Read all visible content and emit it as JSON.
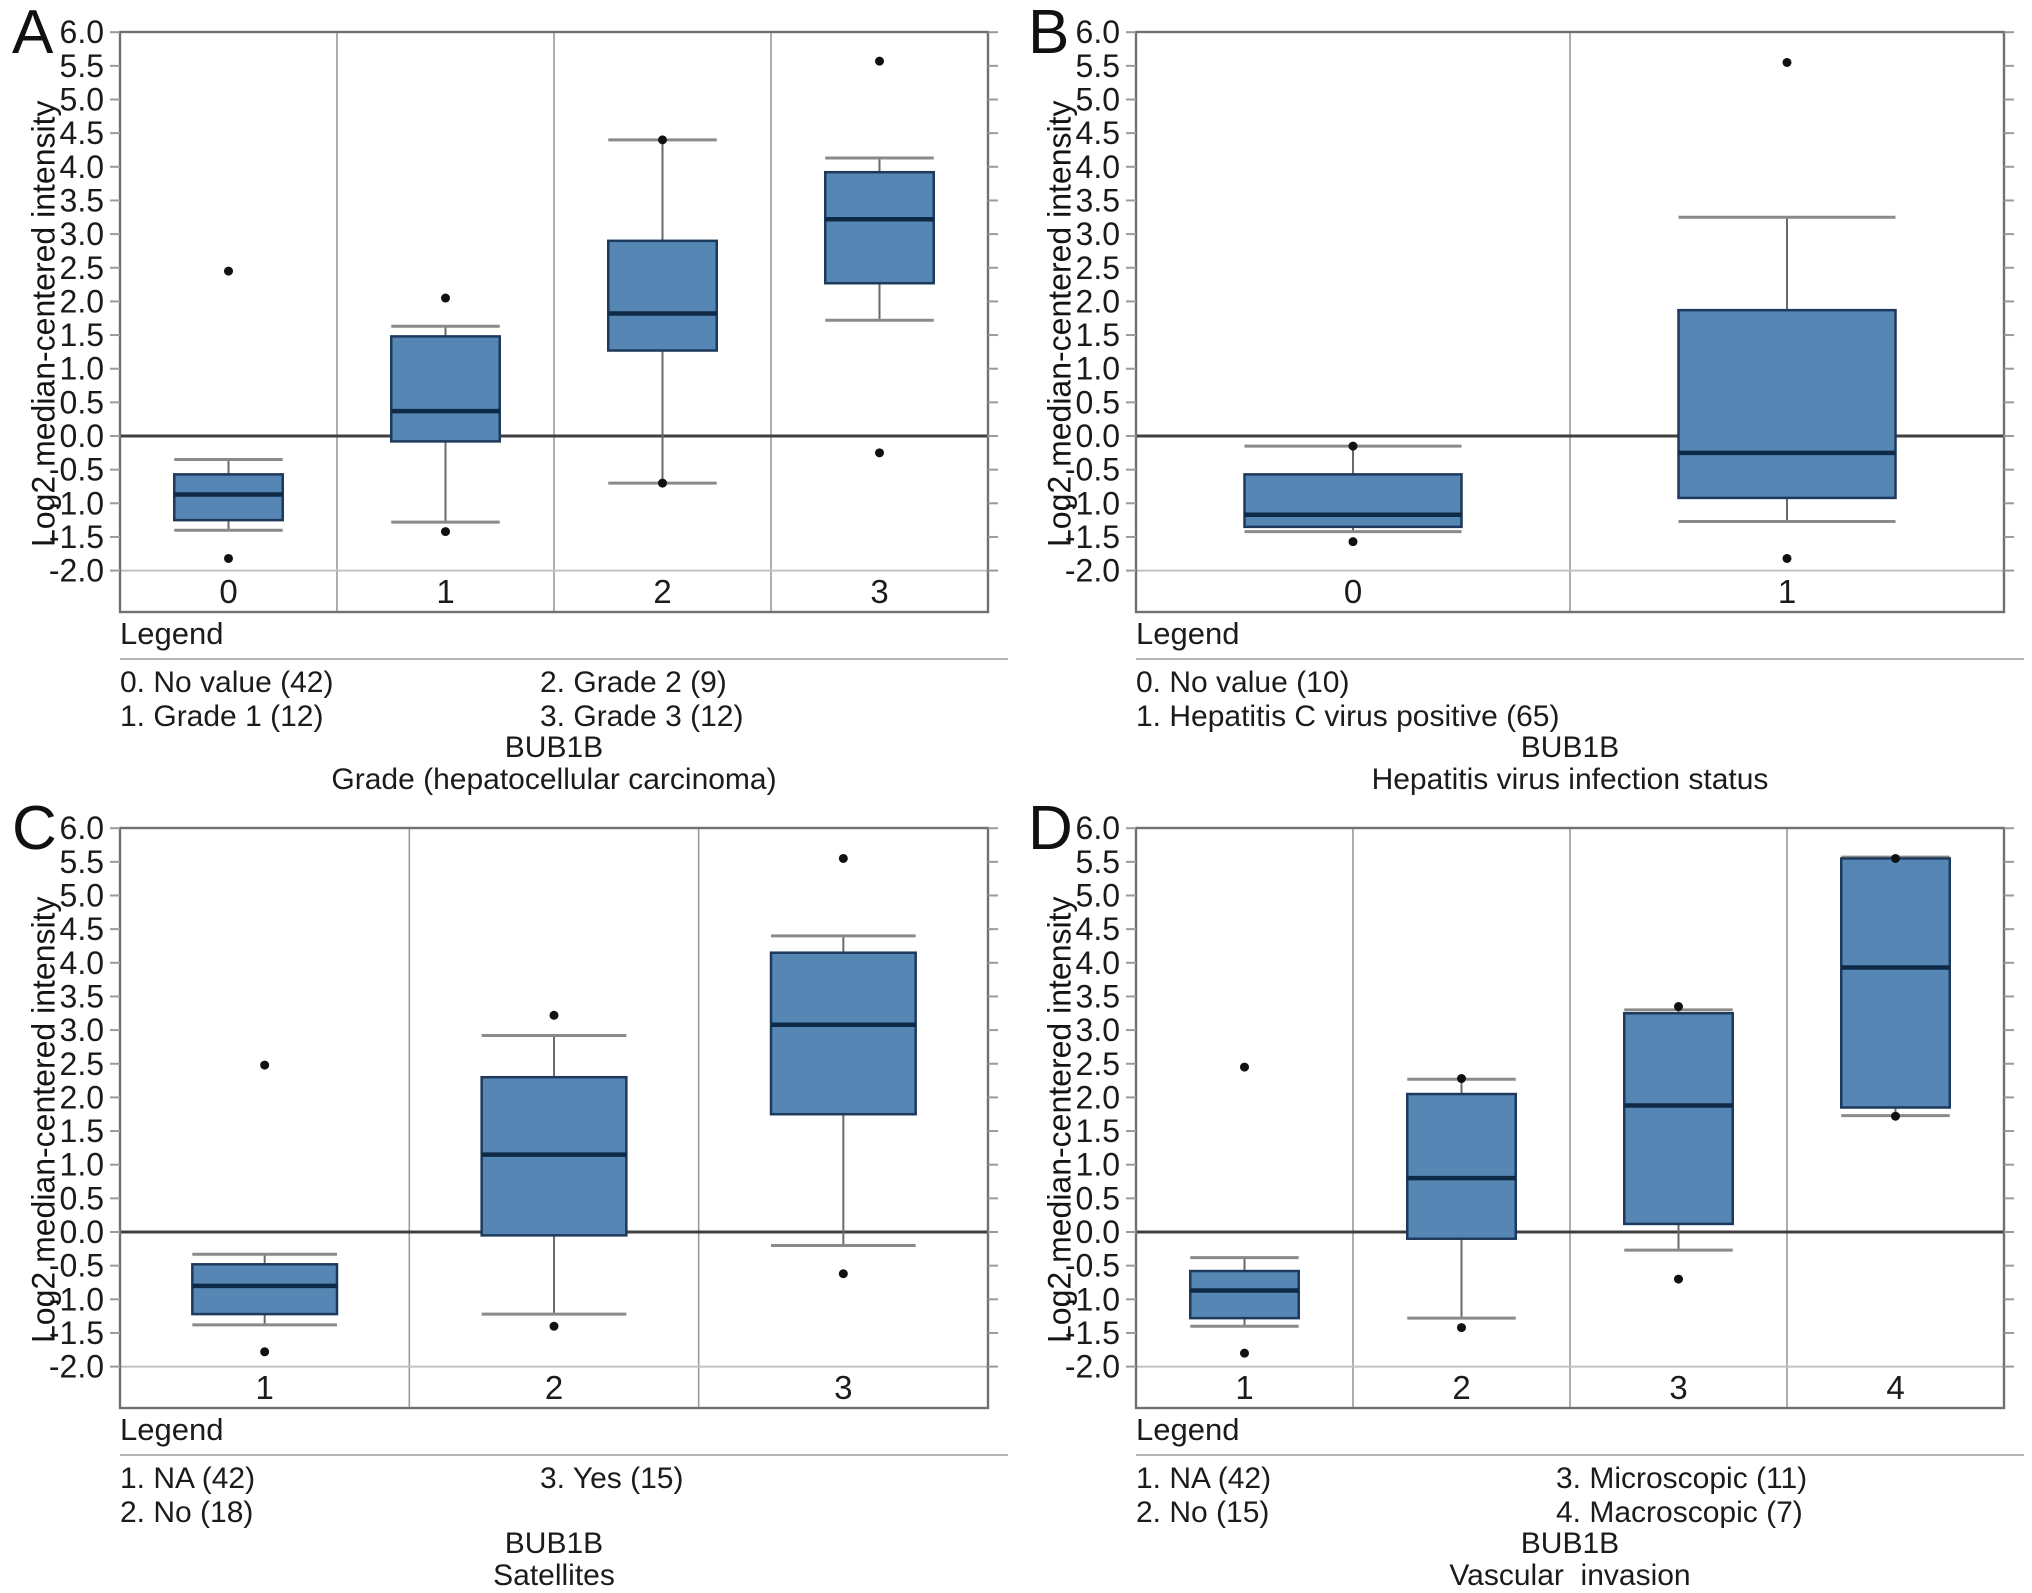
{
  "y_axis": {
    "label": "Log2 median-centered intensity",
    "tick_labels": [
      "6.0",
      "5.5",
      "5.0",
      "4.5",
      "4.0",
      "3.5",
      "3.0",
      "2.5",
      "2.0",
      "1.5",
      "1.0",
      "0.5",
      "0.0",
      "-0.5",
      "-1.0",
      "-1.5",
      "-2.0"
    ]
  },
  "colors": {
    "box_fill": "#5586b4",
    "box_border": "#1d3a5d",
    "median_line": "#0e2a47",
    "whisker_line": "#6a6a6a",
    "cap_line": "#8a8a8a",
    "outlier": "#111111",
    "frame": "#707070",
    "zero_line": "#3f3f3f",
    "baseline_grid": "#c2c2c2",
    "separator": "#9a9a9a",
    "legend_rule": "#b5b5b5",
    "text": "#1b1b1b"
  },
  "chart_data": [
    {
      "type": "box",
      "panel_letter": "A",
      "gene": "BUB1B",
      "title": "Grade (hepatocellular carcinoma)",
      "ylabel": "Log2 median-centered intensity",
      "ylim": [
        -2.6,
        6.0
      ],
      "zero_line": true,
      "legend_title": "Legend",
      "legend_columns": [
        [
          "0. No value (42)",
          "1. Grade 1 (12)"
        ],
        [
          "2. Grade 2 (9)",
          "3. Grade 3 (12)"
        ]
      ],
      "categories": [
        "0",
        "1",
        "2",
        "3"
      ],
      "boxes": [
        {
          "category": "0",
          "whisker_low": -1.4,
          "q1": -1.25,
          "median": -0.87,
          "q3": -0.57,
          "whisker_high": -0.35,
          "outliers": [
            2.45,
            -1.82
          ]
        },
        {
          "category": "1",
          "whisker_low": -1.28,
          "q1": -0.08,
          "median": 0.37,
          "q3": 1.48,
          "whisker_high": 1.63,
          "outliers": [
            2.05,
            -1.42
          ]
        },
        {
          "category": "2",
          "whisker_low": -0.7,
          "q1": 1.27,
          "median": 1.82,
          "q3": 2.9,
          "whisker_high": 4.4,
          "outliers": [
            4.4,
            -0.7
          ]
        },
        {
          "category": "3",
          "whisker_low": 1.72,
          "q1": 2.27,
          "median": 3.22,
          "q3": 3.92,
          "whisker_high": 4.13,
          "outliers": [
            5.57,
            -0.25
          ]
        }
      ]
    },
    {
      "type": "box",
      "panel_letter": "B",
      "gene": "BUB1B",
      "title": "Hepatitis virus infection status",
      "ylabel": "Log2 median-centered intensity",
      "ylim": [
        -2.6,
        6.0
      ],
      "zero_line": true,
      "legend_title": "Legend",
      "legend_columns": [
        [
          "0. No value (10)",
          "1. Hepatitis C virus positive (65)"
        ],
        []
      ],
      "categories": [
        "0",
        "1"
      ],
      "boxes": [
        {
          "category": "0",
          "whisker_low": -1.42,
          "q1": -1.35,
          "median": -1.17,
          "q3": -0.57,
          "whisker_high": -0.15,
          "outliers": [
            -0.15,
            -1.57
          ]
        },
        {
          "category": "1",
          "whisker_low": -1.27,
          "q1": -0.92,
          "median": -0.25,
          "q3": 1.87,
          "whisker_high": 3.25,
          "outliers": [
            5.55,
            -1.82
          ]
        }
      ]
    },
    {
      "type": "box",
      "panel_letter": "C",
      "gene": "BUB1B",
      "title": "Satellites",
      "ylabel": "Log2 median-centered intensity",
      "ylim": [
        -2.6,
        6.0
      ],
      "zero_line": true,
      "legend_title": "Legend",
      "legend_columns": [
        [
          "1. NA (42)",
          "2. No (18)"
        ],
        [
          "3. Yes (15)"
        ]
      ],
      "categories": [
        "1",
        "2",
        "3"
      ],
      "boxes": [
        {
          "category": "1",
          "whisker_low": -1.38,
          "q1": -1.22,
          "median": -0.8,
          "q3": -0.48,
          "whisker_high": -0.33,
          "outliers": [
            2.48,
            -1.78
          ]
        },
        {
          "category": "2",
          "whisker_low": -1.22,
          "q1": -0.05,
          "median": 1.15,
          "q3": 2.3,
          "whisker_high": 2.92,
          "outliers": [
            3.22,
            -1.4
          ]
        },
        {
          "category": "3",
          "whisker_low": -0.2,
          "q1": 1.75,
          "median": 3.08,
          "q3": 4.15,
          "whisker_high": 4.4,
          "outliers": [
            5.55,
            -0.62
          ]
        }
      ]
    },
    {
      "type": "box",
      "panel_letter": "D",
      "gene": "BUB1B",
      "title": "Vascular  invasion",
      "ylabel": "Log2 median-centered intensity",
      "ylim": [
        -2.6,
        6.0
      ],
      "zero_line": true,
      "legend_title": "Legend",
      "legend_columns": [
        [
          "1. NA (42)",
          "2. No (15)"
        ],
        [
          "3. Microscopic (11)",
          "4. Macroscopic (7)"
        ]
      ],
      "categories": [
        "1",
        "2",
        "3",
        "4"
      ],
      "boxes": [
        {
          "category": "1",
          "whisker_low": -1.4,
          "q1": -1.28,
          "median": -0.87,
          "q3": -0.58,
          "whisker_high": -0.38,
          "outliers": [
            2.45,
            -1.8
          ]
        },
        {
          "category": "2",
          "whisker_low": -1.28,
          "q1": -0.1,
          "median": 0.8,
          "q3": 2.05,
          "whisker_high": 2.27,
          "outliers": [
            2.28,
            -1.42
          ]
        },
        {
          "category": "3",
          "whisker_low": -0.27,
          "q1": 0.12,
          "median": 1.88,
          "q3": 3.25,
          "whisker_high": 3.3,
          "outliers": [
            3.35,
            -0.7
          ]
        },
        {
          "category": "4",
          "whisker_low": 1.73,
          "q1": 1.85,
          "median": 3.93,
          "q3": 5.55,
          "whisker_high": 5.57,
          "outliers": [
            5.55,
            1.72
          ]
        }
      ]
    }
  ]
}
